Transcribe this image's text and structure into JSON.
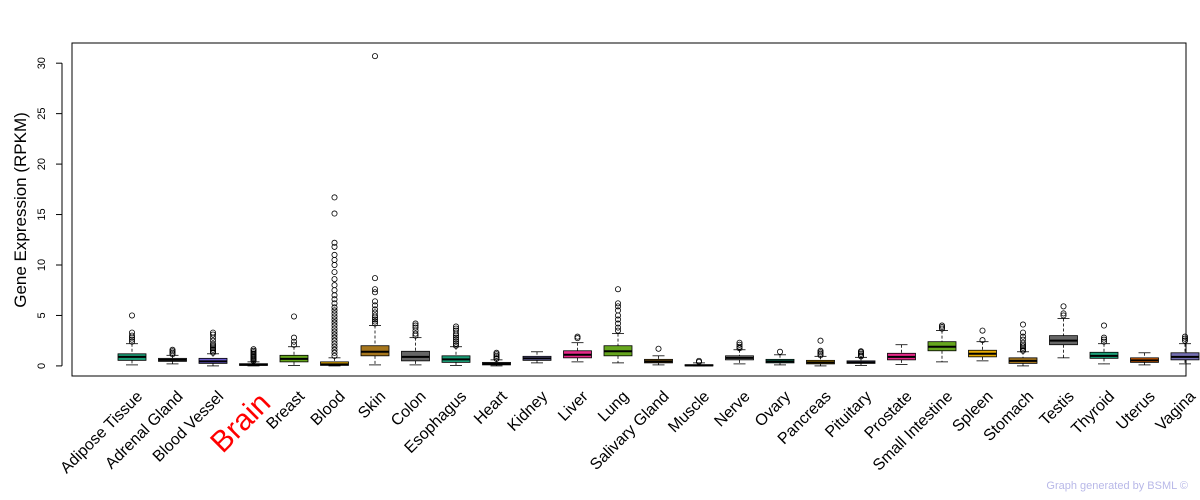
{
  "chart_data": {
    "type": "box",
    "ylabel": "Gene Expression (RPKM)",
    "xlabel": "",
    "ylim": [
      -1,
      32
    ],
    "yticks": [
      0,
      5,
      10,
      15,
      20,
      25,
      30
    ],
    "highlight": {
      "category": "Brain",
      "color": "#ff0000"
    },
    "categories": [
      {
        "name": "Adipose Tissue",
        "color": "#1b9e77",
        "q1": 0.55,
        "median": 0.9,
        "q3": 1.2,
        "whisker_low": 0.1,
        "whisker_high": 2.2,
        "outliers": [
          2.4,
          2.6,
          2.8,
          3.0,
          3.3,
          5.0
        ]
      },
      {
        "name": "Adrenal Gland",
        "color": "#8a8a8a",
        "q1": 0.45,
        "median": 0.6,
        "q3": 0.75,
        "whisker_low": 0.2,
        "whisker_high": 1.05,
        "outliers": [
          1.15,
          1.3,
          1.45,
          1.6
        ]
      },
      {
        "name": "Blood Vessel",
        "color": "#6a5acd",
        "q1": 0.25,
        "median": 0.45,
        "q3": 0.75,
        "whisker_low": 0.0,
        "whisker_high": 1.2,
        "outliers": [
          1.3,
          1.45,
          1.6,
          1.75,
          1.9,
          2.05,
          2.2,
          2.5,
          2.8,
          3.1,
          3.3
        ]
      },
      {
        "name": "Brain",
        "color": "#8a8a8a",
        "q1": 0.05,
        "median": 0.12,
        "q3": 0.22,
        "whisker_low": 0.0,
        "whisker_high": 0.4,
        "outliers": [
          0.5,
          0.6,
          0.7,
          0.8,
          0.9,
          1.0,
          1.1,
          1.2,
          1.35,
          1.5,
          1.65
        ]
      },
      {
        "name": "Breast",
        "color": "#66a61e",
        "q1": 0.4,
        "median": 0.7,
        "q3": 1.05,
        "whisker_low": 0.05,
        "whisker_high": 1.9,
        "outliers": [
          2.1,
          2.4,
          2.8,
          4.9
        ]
      },
      {
        "name": "Blood",
        "color": "#e6ab02",
        "q1": 0.05,
        "median": 0.15,
        "q3": 0.4,
        "whisker_low": 0.0,
        "whisker_high": 0.8,
        "outliers": [
          1.0,
          1.3,
          1.6,
          1.9,
          2.2,
          2.5,
          2.8,
          3.1,
          3.4,
          3.7,
          4.0,
          4.3,
          4.6,
          4.9,
          5.2,
          5.5,
          5.8,
          6.2,
          6.6,
          7.0,
          7.5,
          8.0,
          8.6,
          9.3,
          10.0,
          10.5,
          11.0,
          11.8,
          12.2,
          15.1,
          16.7
        ]
      },
      {
        "name": "Skin",
        "color": "#a6761d",
        "q1": 1.0,
        "median": 1.4,
        "q3": 2.0,
        "whisker_low": 0.1,
        "whisker_high": 4.0,
        "outliers": [
          4.2,
          4.4,
          4.6,
          4.8,
          5.0,
          5.3,
          5.6,
          6.0,
          6.4,
          7.3,
          7.6,
          8.7,
          30.7
        ]
      },
      {
        "name": "Colon",
        "color": "#666666",
        "q1": 0.5,
        "median": 0.9,
        "q3": 1.45,
        "whisker_low": 0.1,
        "whisker_high": 2.8,
        "outliers": [
          3.0,
          3.2,
          3.5,
          3.8,
          4.0,
          4.2
        ]
      },
      {
        "name": "Esophagus",
        "color": "#1b9e77",
        "q1": 0.35,
        "median": 0.65,
        "q3": 1.0,
        "whisker_low": 0.05,
        "whisker_high": 1.9,
        "outliers": [
          2.0,
          2.2,
          2.4,
          2.6,
          2.8,
          3.0,
          3.2,
          3.5,
          3.7,
          3.9
        ]
      },
      {
        "name": "Heart",
        "color": "#8a8a8a",
        "q1": 0.1,
        "median": 0.2,
        "q3": 0.35,
        "whisker_low": 0.0,
        "whisker_high": 0.6,
        "outliers": [
          0.7,
          0.85,
          1.0,
          1.15,
          1.3
        ]
      },
      {
        "name": "Kidney",
        "color": "#7570b3",
        "q1": 0.55,
        "median": 0.75,
        "q3": 0.95,
        "whisker_low": 0.3,
        "whisker_high": 1.4,
        "outliers": []
      },
      {
        "name": "Liver",
        "color": "#e7298a",
        "q1": 0.8,
        "median": 1.1,
        "q3": 1.5,
        "whisker_low": 0.4,
        "whisker_high": 2.3,
        "outliers": [
          2.75,
          2.9
        ]
      },
      {
        "name": "Lung",
        "color": "#66a61e",
        "q1": 1.0,
        "median": 1.45,
        "q3": 2.0,
        "whisker_low": 0.3,
        "whisker_high": 3.2,
        "outliers": [
          3.5,
          3.8,
          4.2,
          4.6,
          5.0,
          5.5,
          5.9,
          6.2,
          7.6
        ]
      },
      {
        "name": "Salivary Gland",
        "color": "#a6761d",
        "q1": 0.3,
        "median": 0.45,
        "q3": 0.65,
        "whisker_low": 0.1,
        "whisker_high": 1.0,
        "outliers": [
          1.7
        ]
      },
      {
        "name": "Muscle",
        "color": "#666666",
        "q1": 0.0,
        "median": 0.05,
        "q3": 0.12,
        "whisker_low": 0.0,
        "whisker_high": 0.3,
        "outliers": [
          0.4,
          0.5
        ]
      },
      {
        "name": "Nerve",
        "color": "#8a8a8a",
        "q1": 0.6,
        "median": 0.8,
        "q3": 1.0,
        "whisker_low": 0.2,
        "whisker_high": 1.6,
        "outliers": [
          1.75,
          1.9,
          2.1,
          2.3
        ]
      },
      {
        "name": "Ovary",
        "color": "#1b9e77",
        "q1": 0.3,
        "median": 0.45,
        "q3": 0.65,
        "whisker_low": 0.1,
        "whisker_high": 1.1,
        "outliers": [
          1.4
        ]
      },
      {
        "name": "Pancreas",
        "color": "#e6ab02",
        "q1": 0.2,
        "median": 0.35,
        "q3": 0.55,
        "whisker_low": 0.0,
        "whisker_high": 0.95,
        "outliers": [
          1.05,
          1.2,
          1.35,
          1.5,
          2.5
        ]
      },
      {
        "name": "Pituitary",
        "color": "#7570b3",
        "q1": 0.25,
        "median": 0.35,
        "q3": 0.5,
        "whisker_low": 0.05,
        "whisker_high": 0.85,
        "outliers": [
          0.95,
          1.05,
          1.2,
          1.35,
          1.45
        ]
      },
      {
        "name": "Prostate",
        "color": "#e7298a",
        "q1": 0.6,
        "median": 0.9,
        "q3": 1.25,
        "whisker_low": 0.15,
        "whisker_high": 2.1,
        "outliers": []
      },
      {
        "name": "Small Intestine",
        "color": "#66a61e",
        "q1": 1.5,
        "median": 1.9,
        "q3": 2.4,
        "whisker_low": 0.4,
        "whisker_high": 3.5,
        "outliers": [
          3.7,
          3.85,
          4.0
        ]
      },
      {
        "name": "Spleen",
        "color": "#e6ab02",
        "q1": 0.9,
        "median": 1.2,
        "q3": 1.55,
        "whisker_low": 0.5,
        "whisker_high": 2.4,
        "outliers": [
          2.55,
          3.5
        ]
      },
      {
        "name": "Stomach",
        "color": "#a6761d",
        "q1": 0.25,
        "median": 0.5,
        "q3": 0.8,
        "whisker_low": 0.0,
        "whisker_high": 1.4,
        "outliers": [
          1.5,
          1.65,
          1.8,
          1.95,
          2.1,
          2.3,
          2.6,
          2.9,
          3.3,
          4.1
        ]
      },
      {
        "name": "Testis",
        "color": "#666666",
        "q1": 2.1,
        "median": 2.5,
        "q3": 3.0,
        "whisker_low": 0.8,
        "whisker_high": 4.7,
        "outliers": [
          5.0,
          5.2,
          5.9
        ]
      },
      {
        "name": "Thyroid",
        "color": "#1b9e77",
        "q1": 0.75,
        "median": 1.0,
        "q3": 1.35,
        "whisker_low": 0.2,
        "whisker_high": 2.2,
        "outliers": [
          2.4,
          2.6,
          2.8,
          4.0
        ]
      },
      {
        "name": "Uterus",
        "color": "#d95f02",
        "q1": 0.35,
        "median": 0.55,
        "q3": 0.8,
        "whisker_low": 0.1,
        "whisker_high": 1.3,
        "outliers": []
      },
      {
        "name": "Vagina",
        "color": "#7570b3",
        "q1": 0.6,
        "median": 0.9,
        "q3": 1.3,
        "whisker_low": 0.2,
        "whisker_high": 2.2,
        "outliers": [
          2.5,
          2.7,
          2.9
        ]
      }
    ]
  },
  "footer": {
    "credit": "Graph generated by BSML ©"
  }
}
